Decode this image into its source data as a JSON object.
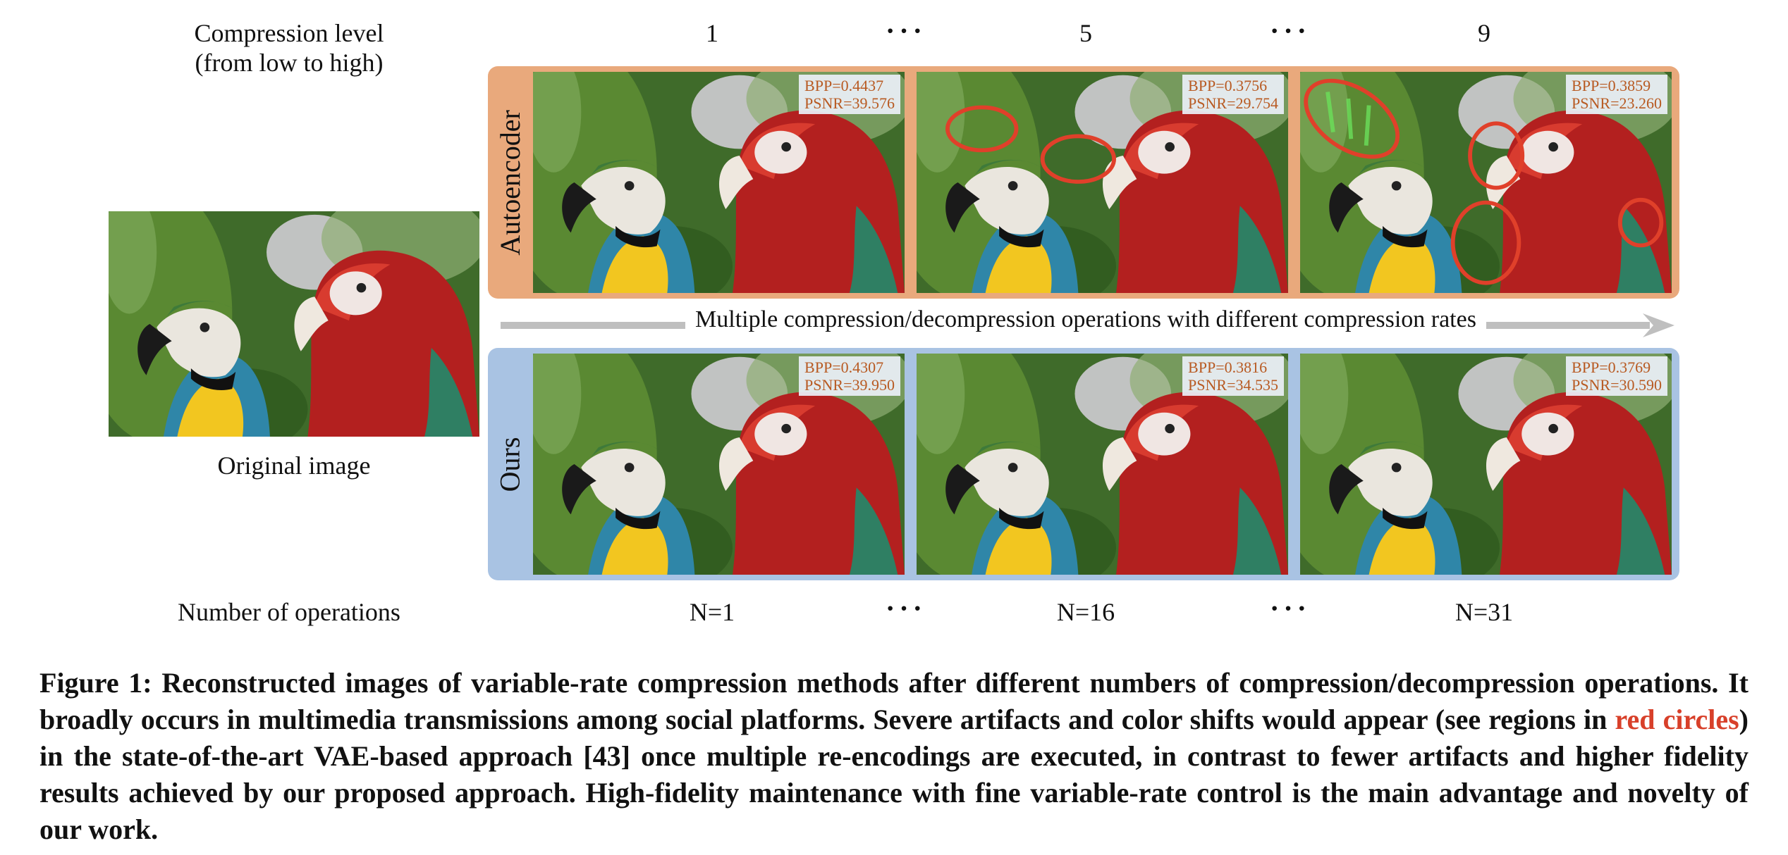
{
  "header": {
    "compression_label_line1": "Compression level",
    "compression_label_line2": "(from low to high)",
    "level_1": "1",
    "level_5": "5",
    "level_9": "9",
    "dots": "···"
  },
  "original": {
    "label": "Original image"
  },
  "rows": {
    "autoencoder": {
      "label": "Autoencoder",
      "color": "#e9a97c",
      "metrics": [
        {
          "bpp": "BPP=0.4437",
          "psnr": "PSNR=39.576"
        },
        {
          "bpp": "BPP=0.3756",
          "psnr": "PSNR=29.754"
        },
        {
          "bpp": "BPP=0.3859",
          "psnr": "PSNR=23.260"
        }
      ]
    },
    "ours": {
      "label": "Ours",
      "color": "#a9c3e3",
      "metrics": [
        {
          "bpp": "BPP=0.4307",
          "psnr": "PSNR=39.950"
        },
        {
          "bpp": "BPP=0.3816",
          "psnr": "PSNR=34.535"
        },
        {
          "bpp": "BPP=0.3769",
          "psnr": "PSNR=30.590"
        }
      ]
    }
  },
  "arrow_label": "Multiple compression/decompression operations with different compression rates",
  "footer": {
    "operations_label": "Number of operations",
    "n1": "N=1",
    "n16": "N=16",
    "n31": "N=31"
  },
  "caption": {
    "part1": "Figure 1: Reconstructed images of variable-rate compression methods after different numbers of compression/decompression operations. It broadly occurs in multimedia transmissions among social platforms. Severe artifacts and color shifts would appear (see regions in ",
    "highlight": "red circles",
    "part2": ") in the state-of-the-art VAE-based approach [43] once multiple re-encodings are executed, in contrast to fewer artifacts and higher fidelity results achieved by our proposed approach. High-fidelity maintenance with fine variable-rate control is the main advantage and novelty of our work."
  },
  "colors": {
    "annotation_circle": "#e0402a",
    "metric_text": "#b85a22"
  }
}
